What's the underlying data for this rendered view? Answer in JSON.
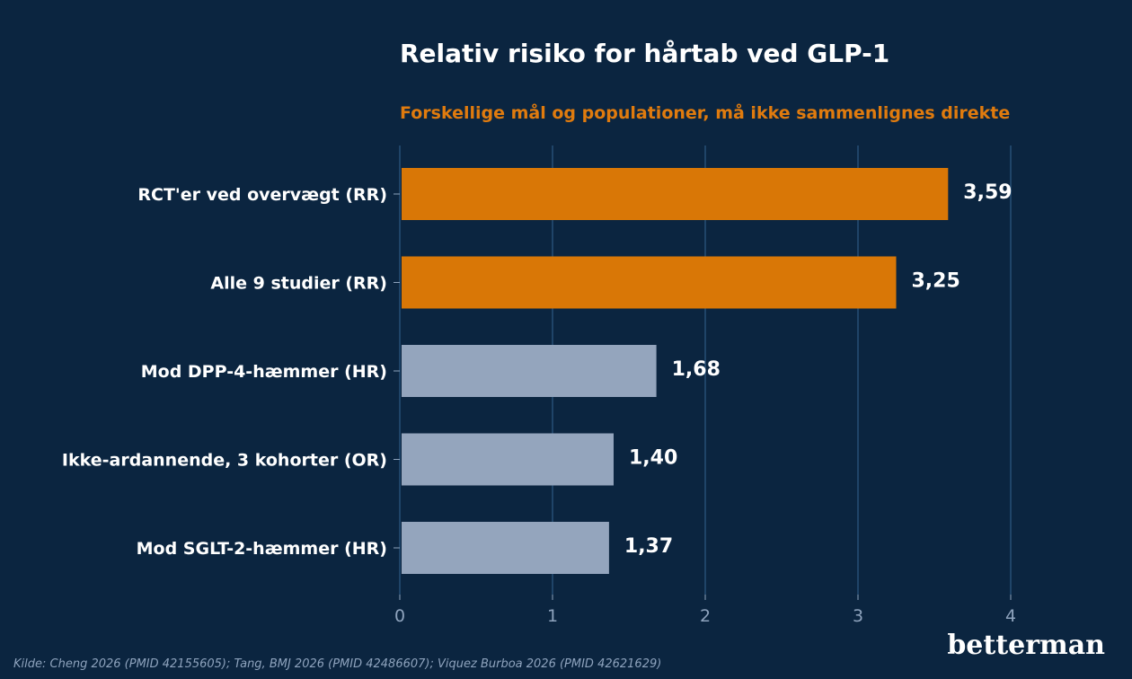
{
  "title": "Relativ risiko for hårtab ved GLP-1",
  "subtitle": "Forskellige mål og populationer, må ikke sammenlignes direkte",
  "source": "Kilde: Cheng 2026 (PMID 42155605); Tang, BMJ 2026 (PMID 42486607); Viquez Burboa 2026 (PMID 42621629)",
  "brand": "betterman",
  "colors": {
    "background": "#0b2540",
    "highlight": "#d97706",
    "muted": "#94a5bd",
    "grid": "#1f4468"
  },
  "chart_data": {
    "type": "bar",
    "orientation": "horizontal",
    "categories": [
      "RCT'er ved overvægt (RR)",
      "Alle 9 studier (RR)",
      "Mod DPP-4-hæmmer (HR)",
      "Ikke-ardannende, 3 kohorter (OR)",
      "Mod SGLT-2-hæmmer (HR)"
    ],
    "values": [
      3.59,
      3.25,
      1.68,
      1.4,
      1.37
    ],
    "value_labels": [
      "3,59",
      "3,25",
      "1,68",
      "1,40",
      "1,37"
    ],
    "highlight": [
      true,
      true,
      false,
      false,
      false
    ],
    "xlim": [
      0,
      4.2
    ],
    "xticks": [
      0,
      1,
      2,
      3,
      4
    ],
    "xtick_labels": [
      "0",
      "1",
      "2",
      "3",
      "4"
    ],
    "grid": "vertical",
    "xlabel": "",
    "ylabel": ""
  }
}
